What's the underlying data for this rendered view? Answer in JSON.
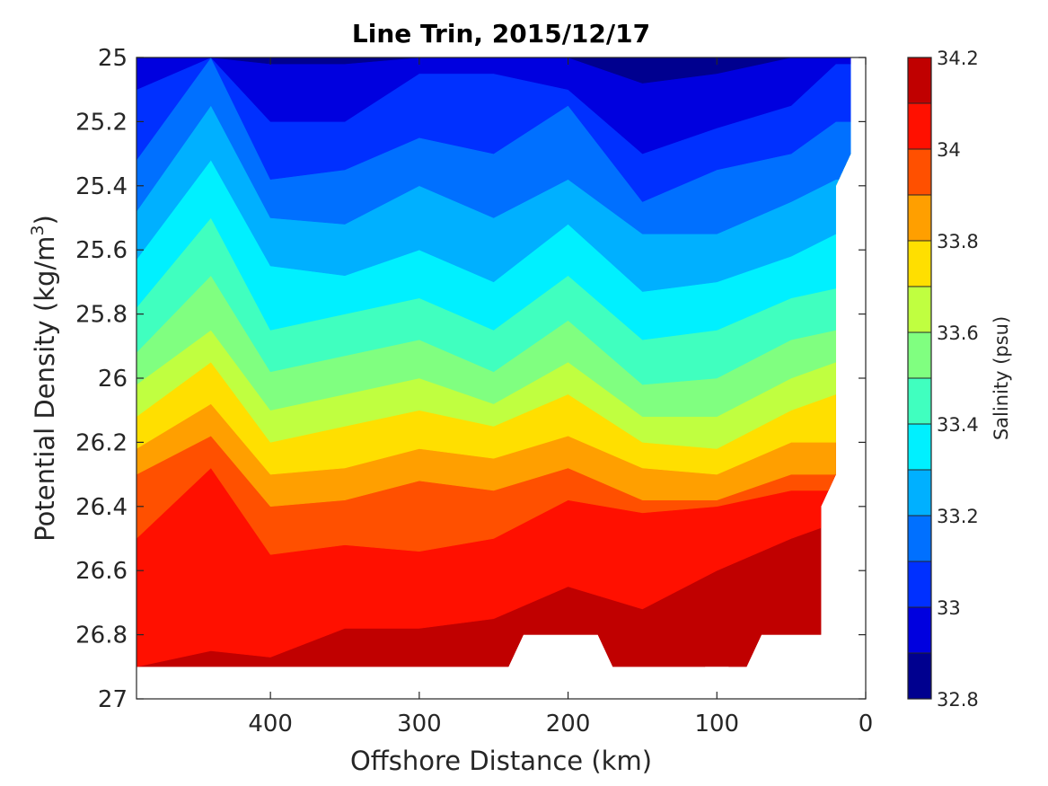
{
  "chart_data": {
    "type": "heatmap",
    "title": "Line Trin, 2015/12/17",
    "xlabel": "Offshore Distance (km)",
    "ylabel": "Potential Density (kg/m3)",
    "ylabel_main": "Potential Density (kg/m",
    "ylabel_sup": "3",
    "ylabel_tail": ")",
    "colorbar_label": "Salinity (psu)",
    "x_ticks": [
      "400",
      "300",
      "200",
      "100",
      "0"
    ],
    "y_ticks": [
      "25",
      "25.2",
      "25.4",
      "25.6",
      "25.8",
      "26",
      "26.2",
      "26.4",
      "26.6",
      "26.8",
      "27"
    ],
    "colorbar_ticks": [
      "32.8",
      "33",
      "33.2",
      "33.4",
      "33.6",
      "33.8",
      "34",
      "34.2"
    ],
    "xlim": [
      490,
      0
    ],
    "ylim": [
      25,
      27
    ],
    "clim": [
      32.8,
      34.2
    ],
    "levels": [
      32.8,
      32.9,
      33.0,
      33.1,
      33.2,
      33.3,
      33.4,
      33.5,
      33.6,
      33.7,
      33.8,
      33.9,
      34.0,
      34.1,
      34.2
    ],
    "level_colors": [
      "#00008f",
      "#0000df",
      "#0030ff",
      "#0070ff",
      "#00b0ff",
      "#00f0ff",
      "#40ffbf",
      "#80ff80",
      "#c0ff40",
      "#ffdf00",
      "#ff9f00",
      "#ff5000",
      "#ff1000",
      "#c00000"
    ],
    "x": [
      490,
      440,
      400,
      350,
      300,
      250,
      200,
      150,
      100,
      50,
      20
    ],
    "isopycnal_depths": [
      {
        "salinity": 32.9,
        "y": [
          25.0,
          25.0,
          25.02,
          25.02,
          25.0,
          25.0,
          25.0,
          25.08,
          25.05,
          25.0,
          25.0
        ]
      },
      {
        "salinity": 33.0,
        "y": [
          25.1,
          25.0,
          25.2,
          25.2,
          25.05,
          25.05,
          25.1,
          25.3,
          25.22,
          25.15,
          25.02
        ]
      },
      {
        "salinity": 33.1,
        "y": [
          25.32,
          25.0,
          25.38,
          25.35,
          25.25,
          25.3,
          25.15,
          25.45,
          25.35,
          25.3,
          25.2
        ]
      },
      {
        "salinity": 33.2,
        "y": [
          25.48,
          25.15,
          25.5,
          25.52,
          25.4,
          25.5,
          25.38,
          25.55,
          25.55,
          25.45,
          25.38
        ]
      },
      {
        "salinity": 33.3,
        "y": [
          25.63,
          25.32,
          25.65,
          25.68,
          25.6,
          25.7,
          25.52,
          25.73,
          25.7,
          25.62,
          25.55
        ]
      },
      {
        "salinity": 33.4,
        "y": [
          25.78,
          25.5,
          25.85,
          25.8,
          25.75,
          25.85,
          25.68,
          25.88,
          25.85,
          25.75,
          25.72
        ]
      },
      {
        "salinity": 33.5,
        "y": [
          25.92,
          25.68,
          25.98,
          25.93,
          25.88,
          25.98,
          25.82,
          26.02,
          26.0,
          25.88,
          25.85
        ]
      },
      {
        "salinity": 33.6,
        "y": [
          26.02,
          25.85,
          26.1,
          26.05,
          26.0,
          26.08,
          25.95,
          26.12,
          26.12,
          26.0,
          25.95
        ]
      },
      {
        "salinity": 33.7,
        "y": [
          26.12,
          25.95,
          26.2,
          26.15,
          26.1,
          26.15,
          26.05,
          26.2,
          26.22,
          26.1,
          26.05
        ]
      },
      {
        "salinity": 33.8,
        "y": [
          26.22,
          26.08,
          26.3,
          26.28,
          26.22,
          26.25,
          26.18,
          26.28,
          26.3,
          26.2,
          26.2
        ]
      },
      {
        "salinity": 33.9,
        "y": [
          26.3,
          26.18,
          26.4,
          26.38,
          26.32,
          26.35,
          26.28,
          26.38,
          26.38,
          26.3,
          26.3
        ]
      },
      {
        "salinity": 34.0,
        "y": [
          26.5,
          26.28,
          26.55,
          26.52,
          26.54,
          26.5,
          26.38,
          26.42,
          26.4,
          26.35,
          26.35
        ]
      },
      {
        "salinity": 34.1,
        "y": [
          26.9,
          26.85,
          26.87,
          26.78,
          26.78,
          26.75,
          26.65,
          26.72,
          26.6,
          26.5,
          26.45
        ]
      },
      {
        "salinity": 34.2,
        "y": [
          27.0,
          27.0,
          27.0,
          27.0,
          27.0,
          27.0,
          27.0,
          27.0,
          26.88,
          27.0,
          27.0
        ]
      }
    ],
    "data_coverage": {
      "bottom": [
        [
          490,
          26.9
        ],
        [
          240,
          26.9
        ],
        [
          230,
          26.8
        ],
        [
          180,
          26.8
        ],
        [
          170,
          26.9
        ],
        [
          160,
          26.9
        ],
        [
          80,
          26.9
        ],
        [
          70,
          26.8
        ],
        [
          30,
          26.8
        ]
      ],
      "right_edge": [
        [
          30,
          26.8
        ],
        [
          30,
          26.4
        ],
        [
          20,
          26.3
        ],
        [
          20,
          25.4
        ],
        [
          10,
          25.3
        ],
        [
          10,
          25.0
        ]
      ]
    },
    "grid": false,
    "colorbar": "right"
  }
}
